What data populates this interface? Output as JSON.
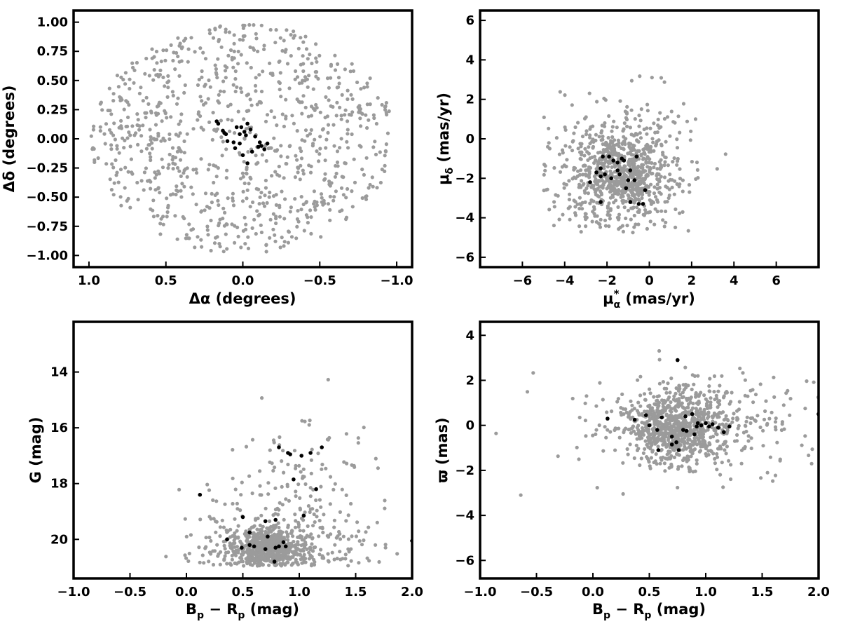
{
  "colors": {
    "field": "#9b9b9b",
    "members": "#000000",
    "frame": "#000000"
  },
  "labels": {
    "p1_x": "Δα (degrees)",
    "p1_y": "Δδ (degrees)",
    "p2_x_mu": "μ",
    "p2_x_star": "*",
    "p2_x_sub": "α",
    "p2_x_unit": " (mas/yr)",
    "p2_y_mu": "μ",
    "p2_y_sub": "δ",
    "p2_y_unit": " (mas/yr)",
    "p3_x_b": "B",
    "p3_x_p1": "p",
    "p3_x_minus": " − R",
    "p3_x_p2": "p",
    "p3_x_unit": " (mag)",
    "p3_y": "G (mag)",
    "p4_x_b": "B",
    "p4_x_p1": "p",
    "p4_x_minus": " − R",
    "p4_x_p2": "p",
    "p4_x_unit": " (mag)",
    "p4_y": "ϖ (mas)"
  },
  "chart_data": [
    {
      "type": "scatter",
      "name": "sky",
      "xlabel": "Δα (degrees)",
      "ylabel": "Δδ (degrees)",
      "xlim": [
        1.1,
        -1.1
      ],
      "ylim": [
        -1.1,
        1.1
      ],
      "x_inverted": true,
      "xticks": [
        1.0,
        0.5,
        0.0,
        -0.5,
        -1.0
      ],
      "xticklabels": [
        "1.0",
        "0.5",
        "0.0",
        "−0.5",
        "−1.0"
      ],
      "yticks": [
        1.0,
        0.75,
        0.5,
        0.25,
        0.0,
        -0.25,
        -0.5,
        -0.75,
        -1.0
      ],
      "yticklabels": [
        "1.00",
        "0.75",
        "0.50",
        "0.25",
        "0.00",
        "−0.25",
        "−0.50",
        "−0.75",
        "−1.00"
      ],
      "field": {
        "distribution": "uniform disk",
        "radius": 1.0,
        "count": 900,
        "color": "#9b9b9b"
      },
      "members": {
        "color": "#000000",
        "points": [
          [
            0.17,
            0.15
          ],
          [
            0.16,
            0.13
          ],
          [
            0.13,
            0.07
          ],
          [
            0.12,
            0.05
          ],
          [
            0.11,
            0.04
          ],
          [
            0.1,
            -0.02
          ],
          [
            0.06,
            -0.03
          ],
          [
            0.05,
            -0.08
          ],
          [
            0.02,
            -0.04
          ],
          [
            0.01,
            0.1
          ],
          [
            0.02,
            0.04
          ],
          [
            -0.01,
            0.06
          ],
          [
            -0.02,
            0.03
          ],
          [
            -0.03,
            0.13
          ],
          [
            -0.05,
            0.08
          ],
          [
            -0.08,
            0.02
          ],
          [
            -0.11,
            -0.03
          ],
          [
            -0.12,
            -0.06
          ],
          [
            -0.14,
            -0.09
          ],
          [
            -0.1,
            -0.07
          ],
          [
            -0.06,
            -0.11
          ],
          [
            0.0,
            -0.14
          ],
          [
            -0.03,
            -0.21
          ],
          [
            0.04,
            0.1
          ],
          [
            -0.16,
            -0.04
          ]
        ]
      }
    },
    {
      "type": "scatter",
      "name": "proper-motion",
      "xlabel": "μα* (mas/yr)",
      "ylabel": "μδ (mas/yr)",
      "xlim": [
        -8,
        8
      ],
      "ylim": [
        -6.5,
        6.5
      ],
      "xticks": [
        -6,
        -4,
        -2,
        0,
        2,
        4,
        6
      ],
      "xticklabels": [
        "−6",
        "−4",
        "−2",
        "0",
        "2",
        "4",
        "6"
      ],
      "yticks": [
        6,
        4,
        2,
        0,
        -2,
        -4,
        -6
      ],
      "yticklabels": [
        "6",
        "4",
        "2",
        "0",
        "−2",
        "−4",
        "−6"
      ],
      "field": {
        "distribution": "clustered",
        "center": [
          -1.3,
          -1.8
        ],
        "count": 950,
        "color": "#9b9b9b"
      },
      "members": {
        "color": "#000000",
        "points": [
          [
            -2.2,
            -0.9
          ],
          [
            -1.9,
            -0.9
          ],
          [
            -1.2,
            -1.1
          ],
          [
            -1.3,
            -1.0
          ],
          [
            -0.9,
            -1.6
          ],
          [
            -0.6,
            -0.9
          ],
          [
            -2.3,
            -1.5
          ],
          [
            -2.5,
            -1.7
          ],
          [
            -2.3,
            -1.9
          ],
          [
            -2.1,
            -1.8
          ],
          [
            -1.5,
            -1.6
          ],
          [
            -1.4,
            -1.8
          ],
          [
            -1.0,
            -2.1
          ],
          [
            -1.1,
            -2.5
          ],
          [
            -0.7,
            -2.1
          ],
          [
            -1.8,
            -2.0
          ],
          [
            -2.8,
            -2.2
          ],
          [
            -2.3,
            -3.2
          ],
          [
            -0.9,
            -3.2
          ],
          [
            -0.5,
            -3.3
          ],
          [
            -0.3,
            -3.3
          ],
          [
            -0.2,
            -2.6
          ],
          [
            -1.7,
            -1.1
          ],
          [
            -1.5,
            -1.2
          ]
        ]
      }
    },
    {
      "type": "scatter",
      "name": "cmd",
      "xlabel": "Bp − Rp (mag)",
      "ylabel": "G (mag)",
      "xlim": [
        -1.0,
        2.0
      ],
      "ylim": [
        21.4,
        12.2
      ],
      "y_inverted": true,
      "xticks": [
        -1.0,
        -0.5,
        0.0,
        0.5,
        1.0,
        1.5,
        2.0
      ],
      "xticklabels": [
        "−1.0",
        "−0.5",
        "0.0",
        "0.5",
        "1.0",
        "1.5",
        "2.0"
      ],
      "yticks": [
        20,
        18,
        16,
        14
      ],
      "yticklabels": [
        "20",
        "18",
        "16",
        "14"
      ],
      "field": {
        "distribution": "clustered",
        "center": [
          0.7,
          20.3
        ],
        "count": 950,
        "color": "#9b9b9b"
      },
      "members": {
        "color": "#000000",
        "points": [
          [
            0.12,
            18.4
          ],
          [
            0.36,
            20.0
          ],
          [
            0.49,
            20.3
          ],
          [
            0.5,
            19.2
          ],
          [
            0.56,
            20.2
          ],
          [
            0.56,
            19.75
          ],
          [
            0.6,
            20.25
          ],
          [
            0.7,
            19.35
          ],
          [
            0.72,
            19.9
          ],
          [
            0.7,
            20.35
          ],
          [
            0.79,
            20.3
          ],
          [
            0.78,
            20.8
          ],
          [
            0.79,
            19.3
          ],
          [
            0.82,
            20.25
          ],
          [
            0.82,
            16.7
          ],
          [
            0.86,
            20.1
          ],
          [
            0.88,
            20.25
          ],
          [
            0.9,
            16.9
          ],
          [
            0.92,
            16.95
          ],
          [
            0.95,
            17.85
          ],
          [
            1.02,
            17.0
          ],
          [
            1.04,
            19.15
          ],
          [
            1.1,
            16.9
          ],
          [
            1.15,
            18.2
          ],
          [
            1.2,
            16.7
          ],
          [
            2.0,
            20.05
          ]
        ]
      }
    },
    {
      "type": "scatter",
      "name": "parallax",
      "xlabel": "Bp − Rp (mag)",
      "ylabel": "ϖ (mas)",
      "xlim": [
        -1.0,
        2.0
      ],
      "ylim": [
        -6.8,
        4.6
      ],
      "xticks": [
        -1.0,
        -0.5,
        0.0,
        0.5,
        1.0,
        1.5,
        2.0
      ],
      "xticklabels": [
        "−1.0",
        "−0.5",
        "0.0",
        "0.5",
        "1.0",
        "1.5",
        "2.0"
      ],
      "yticks": [
        4,
        2,
        0,
        -2,
        -4,
        -6
      ],
      "yticklabels": [
        "4",
        "2",
        "0",
        "−2",
        "−4",
        "−6"
      ],
      "field": {
        "distribution": "clustered",
        "center": [
          0.75,
          -0.1
        ],
        "count": 1000,
        "color": "#9b9b9b"
      },
      "members": {
        "color": "#000000",
        "points": [
          [
            0.13,
            0.3
          ],
          [
            0.37,
            0.25
          ],
          [
            0.47,
            0.45
          ],
          [
            0.5,
            0.0
          ],
          [
            0.57,
            -0.2
          ],
          [
            0.58,
            -1.1
          ],
          [
            0.61,
            0.35
          ],
          [
            0.7,
            -0.5
          ],
          [
            0.7,
            -0.85
          ],
          [
            0.74,
            -0.75
          ],
          [
            0.75,
            2.9
          ],
          [
            0.76,
            -1.1
          ],
          [
            0.8,
            -0.2
          ],
          [
            0.82,
            0.4
          ],
          [
            0.83,
            -0.25
          ],
          [
            0.88,
            0.5
          ],
          [
            0.9,
            -0.4
          ],
          [
            0.92,
            -0.05
          ],
          [
            0.93,
            0.1
          ],
          [
            0.96,
            0.0
          ],
          [
            1.0,
            0.1
          ],
          [
            1.03,
            -0.05
          ],
          [
            1.06,
            0.05
          ],
          [
            1.11,
            -0.1
          ],
          [
            1.16,
            -0.3
          ],
          [
            1.21,
            -0.05
          ],
          [
            2.0,
            0.5
          ]
        ]
      }
    }
  ]
}
